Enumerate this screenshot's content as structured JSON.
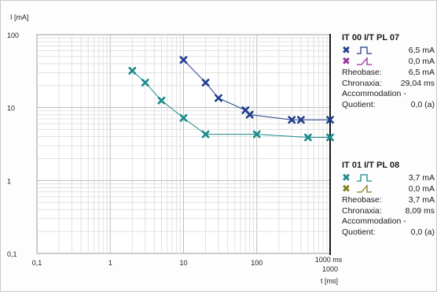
{
  "chart_data": {
    "type": "scatter",
    "ylabel": "I [mA]",
    "xlabel": "t [ms]",
    "x_scale": "log",
    "y_scale": "log",
    "xlim": [
      0.1,
      1000
    ],
    "ylim": [
      0.1,
      100
    ],
    "x_ticks": [
      {
        "value": 0.1,
        "label": "0,1"
      },
      {
        "value": 1,
        "label": "1"
      },
      {
        "value": 10,
        "label": "10"
      },
      {
        "value": 100,
        "label": "100"
      },
      {
        "value": 1000,
        "label": "1000"
      }
    ],
    "x_end_label": "1000 ms",
    "y_ticks": [
      {
        "value": 0.1,
        "label": "0,1"
      },
      {
        "value": 1,
        "label": "1"
      },
      {
        "value": 10,
        "label": "10"
      },
      {
        "value": 100,
        "label": "100"
      }
    ],
    "grid": true,
    "series": [
      {
        "color": "#1f3d8c",
        "points": [
          [
            10,
            45
          ],
          [
            20,
            22
          ],
          [
            30,
            13.5
          ],
          [
            70,
            9.2
          ],
          [
            80,
            8
          ],
          [
            300,
            6.8
          ],
          [
            400,
            6.8
          ],
          [
            1000,
            6.8
          ]
        ]
      },
      {
        "color": "#1a8a8a",
        "points": [
          [
            2,
            32
          ],
          [
            3,
            22
          ],
          [
            5,
            12.5
          ],
          [
            10,
            7.2
          ],
          [
            20,
            4.3
          ],
          [
            100,
            4.3
          ],
          [
            500,
            3.9
          ],
          [
            1000,
            3.9
          ]
        ]
      }
    ]
  },
  "legend": {
    "blocks": [
      {
        "title": "IT 00  I/T PL 07",
        "rows": [
          {
            "marker": "✖",
            "marker_color": "#1f3d8c",
            "pulse": "rect",
            "value": "6,5 mA"
          },
          {
            "marker": "✖",
            "marker_color": "#9b2fa0",
            "pulse": "triangle",
            "value": "0,0 mA"
          }
        ],
        "rheobase_label": "Rheobase:",
        "rheobase_value": "6,5 mA",
        "chronaxia_label": "Chronaxia:",
        "chronaxia_value": "29,04 ms",
        "accommodation_label": "Accommodation -",
        "quotient_label": "Quotient:",
        "quotient_value": "0,0 (a)"
      },
      {
        "title": "IT 01  I/T PL 08",
        "rows": [
          {
            "marker": "✖",
            "marker_color": "#1a8a8a",
            "pulse": "rect",
            "value": "3,7 mA"
          },
          {
            "marker": "✖",
            "marker_color": "#7f7f1e",
            "pulse": "triangle",
            "value": "0,0 mA"
          }
        ],
        "rheobase_label": "Rheobase:",
        "rheobase_value": "3,7 mA",
        "chronaxia_label": "Chronaxia:",
        "chronaxia_value": "8,09 ms",
        "accommodation_label": "Accommodation -",
        "quotient_label": "Quotient:",
        "quotient_value": "0,0 (a)"
      }
    ]
  }
}
